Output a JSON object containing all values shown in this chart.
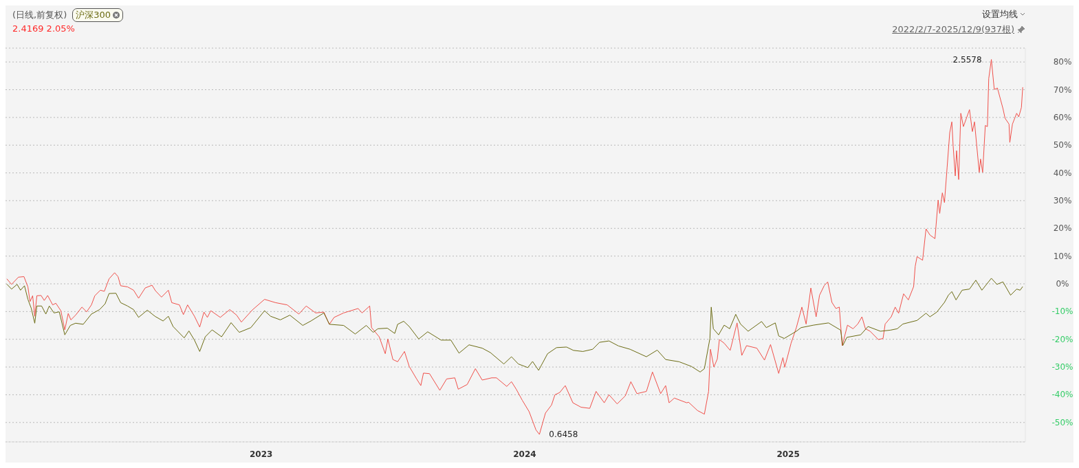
{
  "chart_data": {
    "type": "line",
    "title": "(日线,前复权)",
    "subtitle": "2.4169 2.05%",
    "annotations": [
      "设置均线",
      "2022/2/7-2025/12/9(937根)",
      {
        "text": "2.5578",
        "x": 2025.771,
        "y": 80.9
      },
      {
        "text": "0.6458",
        "x": 2024.056,
        "y": -54.3
      }
    ],
    "xlim": [
      2022.03,
      2025.9
    ],
    "xticks": [
      2023,
      2024,
      2025
    ],
    "ylim": [
      -57,
      85
    ],
    "yticks": [
      {
        "value": -50,
        "label": "-50%"
      },
      {
        "value": -40,
        "label": "-40%"
      },
      {
        "value": -30,
        "label": "-30%"
      },
      {
        "value": -20,
        "label": "-20%"
      },
      {
        "value": -10,
        "label": "-10%"
      },
      {
        "value": 0,
        "label": "0%"
      },
      {
        "value": 10,
        "label": "10%"
      },
      {
        "value": 20,
        "label": "20%"
      },
      {
        "value": 30,
        "label": "30%"
      },
      {
        "value": 40,
        "label": "40%"
      },
      {
        "value": 50,
        "label": "50%"
      },
      {
        "value": 60,
        "label": "60%"
      },
      {
        "value": 70,
        "label": "70%"
      },
      {
        "value": 80,
        "label": "80%"
      }
    ],
    "grid": "y",
    "legend": "top left",
    "marker": "none",
    "line_style": "solid",
    "series": [
      {
        "color": "#f0504a",
        "x": [
          2022.035,
          2022.053,
          2022.079,
          2022.1,
          2022.115,
          2022.123,
          2022.133,
          2022.141,
          2022.149,
          2022.165,
          2022.177,
          2022.19,
          2022.209,
          2022.221,
          2022.24,
          2022.255,
          2022.268,
          2022.278,
          2022.296,
          2022.32,
          2022.338,
          2022.356,
          2022.369,
          2022.39,
          2022.405,
          2022.423,
          2022.444,
          2022.457,
          2022.467,
          2022.493,
          2022.516,
          2022.535,
          2022.56,
          2022.586,
          2022.599,
          2022.622,
          2022.648,
          2022.661,
          2022.69,
          2022.705,
          2022.721,
          2022.747,
          2022.767,
          2022.783,
          2022.796,
          2022.809,
          2022.845,
          2022.881,
          2022.907,
          2022.925,
          2022.967,
          2023.013,
          2023.055,
          2023.099,
          2023.143,
          2023.171,
          2023.207,
          2023.238,
          2023.259,
          2023.277,
          2023.313,
          2023.368,
          2023.383,
          2023.412,
          2023.419,
          2023.448,
          2023.471,
          2023.481,
          2023.5,
          2023.518,
          2023.544,
          2023.562,
          2023.59,
          2023.606,
          2023.616,
          2023.639,
          2023.678,
          2023.704,
          2023.735,
          2023.748,
          2023.782,
          2023.813,
          2023.839,
          2023.875,
          2023.893,
          2023.932,
          2023.95,
          2023.968,
          2023.991,
          2024.017,
          2024.043,
          2024.056,
          2024.079,
          2024.102,
          2024.115,
          2024.133,
          2024.154,
          2024.183,
          2024.214,
          2024.247,
          2024.271,
          2024.302,
          2024.32,
          2024.351,
          2024.382,
          2024.403,
          2024.426,
          2024.462,
          2024.485,
          2024.516,
          2024.535,
          2024.548,
          2024.568,
          2024.615,
          2024.622,
          2024.656,
          2024.682,
          2024.698,
          2024.705,
          2024.718,
          2024.731,
          2024.739,
          2024.757,
          2024.78,
          2024.806,
          2024.824,
          2024.842,
          2024.881,
          2024.91,
          2024.933,
          2024.964,
          2024.98,
          2024.987,
          2025.011,
          2025.031,
          2025.052,
          2025.068,
          2025.086,
          2025.106,
          2025.119,
          2025.137,
          2025.15,
          2025.166,
          2025.181,
          2025.194,
          2025.205,
          2025.225,
          2025.246,
          2025.264,
          2025.28,
          2025.293,
          2025.311,
          2025.342,
          2025.36,
          2025.368,
          2025.391,
          2025.406,
          2025.419,
          2025.438,
          2025.456,
          2025.476,
          2025.482,
          2025.489,
          2025.51,
          2025.523,
          2025.538,
          2025.557,
          2025.569,
          2025.575,
          2025.585,
          2025.593,
          2025.603,
          2025.613,
          2025.621,
          2025.626,
          2025.634,
          2025.639,
          2025.647,
          2025.655,
          2025.665,
          2025.688,
          2025.699,
          2025.707,
          2025.725,
          2025.73,
          2025.738,
          2025.748,
          2025.756,
          2025.761,
          2025.771,
          2025.782,
          2025.794,
          2025.815,
          2025.823,
          2025.838,
          2025.841,
          2025.851,
          2025.867,
          2025.875,
          2025.885,
          2025.89
        ],
        "values": [
          1.8,
          -0.2,
          2.4,
          2.6,
          -1.1,
          -6.4,
          -4.3,
          -11.7,
          -4.3,
          -4.2,
          -6.0,
          -4.2,
          -7.6,
          -7.0,
          -9.7,
          -16.6,
          -10.7,
          -13.0,
          -11.3,
          -8.4,
          -10.1,
          -7.6,
          -4.3,
          -2.3,
          -2.7,
          1.8,
          4.0,
          2.6,
          -0.7,
          -1.1,
          -2.3,
          -5.2,
          -1.5,
          -0.5,
          -2.5,
          -4.8,
          -2.3,
          -6.8,
          -7.6,
          -11.1,
          -7.6,
          -11.7,
          -15.6,
          -10.2,
          -12.1,
          -9.7,
          -12.1,
          -9.3,
          -11.3,
          -13.8,
          -9.4,
          -5.6,
          -6.8,
          -7.6,
          -10.9,
          -8.0,
          -10.5,
          -10.2,
          -14.6,
          -12.1,
          -10.5,
          -8.9,
          -10.5,
          -8.0,
          -15.8,
          -19.1,
          -25.2,
          -19.9,
          -27.3,
          -28.1,
          -24.4,
          -29.8,
          -34.3,
          -36.7,
          -32.2,
          -32.4,
          -38.4,
          -34.3,
          -33.9,
          -38.0,
          -36.3,
          -30.6,
          -34.7,
          -33.9,
          -33.9,
          -37.0,
          -35.3,
          -38.0,
          -42.0,
          -46.1,
          -52.7,
          -54.3,
          -46.6,
          -43.7,
          -40.0,
          -39.2,
          -36.7,
          -42.9,
          -44.5,
          -44.9,
          -38.8,
          -42.9,
          -40.0,
          -43.3,
          -40.4,
          -35.3,
          -39.6,
          -38.8,
          -31.8,
          -39.6,
          -36.7,
          -42.9,
          -41.2,
          -42.9,
          -42.7,
          -45.7,
          -47.0,
          -38.8,
          -23.6,
          -30.0,
          -27.1,
          -20.1,
          -21.4,
          -24.0,
          -14.1,
          -25.8,
          -22.3,
          -23.2,
          -27.5,
          -21.9,
          -32.3,
          -26.6,
          -30.1,
          -21.4,
          -15.8,
          -8.4,
          -14.5,
          -1.5,
          -11.9,
          -4.1,
          -0.6,
          0.7,
          -6.7,
          -8.9,
          -8.4,
          -22.3,
          -14.9,
          -16.2,
          -14.5,
          -11.9,
          -16.2,
          -17.1,
          -20.1,
          -19.7,
          -14.5,
          -11.9,
          -8.4,
          -10.6,
          -3.6,
          -5.8,
          -1.0,
          6.3,
          9.8,
          8.5,
          19.8,
          17.6,
          16.3,
          30.2,
          25.4,
          32.8,
          29.3,
          41.9,
          54.5,
          58.4,
          49.7,
          38.9,
          48.0,
          37.6,
          61.5,
          56.7,
          62.8,
          54.9,
          58.4,
          40.2,
          45.0,
          40.2,
          57.1,
          56.7,
          74.0,
          80.9,
          70.1,
          70.6,
          63.2,
          59.7,
          57.6,
          51.0,
          57.6,
          61.5,
          60.2,
          63.6,
          70.9
        ]
      },
      {
        "name": "沪深300",
        "color": "#6b6b12",
        "x": [
          2022.035,
          2022.053,
          2022.074,
          2022.087,
          2022.102,
          2022.115,
          2022.128,
          2022.141,
          2022.149,
          2022.167,
          2022.183,
          2022.196,
          2022.214,
          2022.234,
          2022.255,
          2022.276,
          2022.296,
          2022.325,
          2022.356,
          2022.387,
          2022.408,
          2022.423,
          2022.449,
          2022.467,
          2022.493,
          2022.516,
          2022.535,
          2022.568,
          2022.597,
          2022.628,
          2022.648,
          2022.666,
          2022.708,
          2022.726,
          2022.747,
          2022.767,
          2022.788,
          2022.814,
          2022.85,
          2022.886,
          2022.917,
          2022.961,
          2023.013,
          2023.036,
          2023.073,
          2023.109,
          2023.158,
          2023.189,
          2023.238,
          2023.259,
          2023.313,
          2023.357,
          2023.399,
          2023.425,
          2023.443,
          2023.479,
          2023.507,
          2023.518,
          2023.541,
          2023.562,
          2023.598,
          2023.632,
          2023.683,
          2023.72,
          2023.751,
          2023.789,
          2023.839,
          2023.87,
          2023.901,
          2023.921,
          2023.95,
          2023.976,
          2024.012,
          2024.03,
          2024.053,
          2024.087,
          2024.121,
          2024.159,
          2024.185,
          2024.221,
          2024.258,
          2024.284,
          2024.32,
          2024.356,
          2024.4,
          2024.462,
          2024.503,
          2024.535,
          2024.586,
          2024.633,
          2024.666,
          2024.682,
          2024.703,
          2024.708,
          2024.716,
          2024.736,
          2024.757,
          2024.778,
          2024.801,
          2024.819,
          2024.848,
          2024.899,
          2024.917,
          2024.951,
          2024.964,
          2024.985,
          2025.031,
          2025.049,
          2025.096,
          2025.153,
          2025.199,
          2025.207,
          2025.223,
          2025.275,
          2025.303,
          2025.35,
          2025.388,
          2025.414,
          2025.435,
          2025.489,
          2025.523,
          2025.538,
          2025.564,
          2025.593,
          2025.608,
          2025.621,
          2025.637,
          2025.66,
          2025.688,
          2025.712,
          2025.735,
          2025.771,
          2025.792,
          2025.815,
          2025.844,
          2025.867,
          2025.88,
          2025.89
        ],
        "values": [
          -0.1,
          -1.9,
          -0.2,
          -2.3,
          -0.7,
          -5.6,
          -8.9,
          -14.2,
          -8.0,
          -8.0,
          -10.9,
          -8.0,
          -10.5,
          -10.1,
          -18.4,
          -15.0,
          -14.2,
          -14.6,
          -10.9,
          -9.3,
          -7.2,
          -3.5,
          -3.4,
          -6.8,
          -8.0,
          -9.3,
          -12.1,
          -9.5,
          -11.7,
          -13.4,
          -11.7,
          -15.4,
          -19.5,
          -17.0,
          -20.3,
          -24.4,
          -19.1,
          -16.6,
          -19.1,
          -14.0,
          -17.5,
          -15.8,
          -9.7,
          -11.7,
          -13.0,
          -11.3,
          -15.0,
          -13.4,
          -10.5,
          -14.6,
          -15.0,
          -18.1,
          -15.0,
          -17.5,
          -16.2,
          -16.0,
          -17.9,
          -14.6,
          -13.5,
          -15.4,
          -19.9,
          -17.3,
          -20.3,
          -20.3,
          -25.0,
          -22.0,
          -23.2,
          -24.8,
          -27.3,
          -28.9,
          -26.3,
          -28.9,
          -30.2,
          -28.0,
          -31.2,
          -25.2,
          -23.0,
          -22.8,
          -24.0,
          -24.4,
          -23.6,
          -21.1,
          -20.6,
          -22.4,
          -23.6,
          -26.3,
          -23.9,
          -27.3,
          -28.1,
          -29.8,
          -31.8,
          -30.6,
          -19.7,
          -8.4,
          -16.2,
          -18.4,
          -14.9,
          -16.2,
          -11.0,
          -14.5,
          -17.1,
          -13.6,
          -15.8,
          -14.1,
          -18.8,
          -19.7,
          -17.1,
          -15.8,
          -14.9,
          -14.1,
          -16.7,
          -22.3,
          -19.3,
          -18.4,
          -15.4,
          -17.1,
          -16.7,
          -16.2,
          -14.5,
          -13.2,
          -10.6,
          -11.9,
          -10.2,
          -6.7,
          -4.1,
          -2.8,
          -5.8,
          -2.3,
          -1.9,
          1.3,
          -2.3,
          2.0,
          -0.2,
          0.7,
          -4.1,
          -1.9,
          -2.3,
          -1.0
        ]
      }
    ]
  }
}
